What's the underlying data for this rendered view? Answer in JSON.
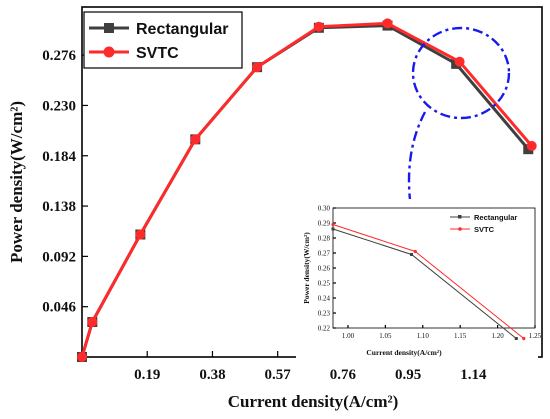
{
  "chart_data": [
    {
      "type": "line",
      "xlabel": "Current density(A/cm²)",
      "ylabel": "Power density(W/cm²)",
      "xlim": [
        0.0,
        1.34
      ],
      "ylim": [
        0.0,
        0.32
      ],
      "x_ticks": [
        "0.19",
        "0.38",
        "0.57",
        "0.76",
        "0.95",
        "1.14"
      ],
      "y_ticks": [
        "0.046",
        "0.092",
        "0.138",
        "0.184",
        "0.230",
        "0.276"
      ],
      "legend_placement": "top-left",
      "series": [
        {
          "name": "Rectangular",
          "color": "#3f3f3f",
          "marker": "square",
          "x": [
            0.0,
            0.03,
            0.17,
            0.33,
            0.51,
            0.69,
            0.89,
            1.09,
            1.3
          ],
          "y": [
            0.0,
            0.032,
            0.112,
            0.199,
            0.265,
            0.301,
            0.303,
            0.268,
            0.19
          ]
        },
        {
          "name": "SVTC",
          "color": "#ff2a2a",
          "marker": "circle",
          "x": [
            0.0,
            0.03,
            0.17,
            0.33,
            0.51,
            0.69,
            0.89,
            1.1,
            1.31
          ],
          "y": [
            0.0,
            0.032,
            0.112,
            0.199,
            0.265,
            0.302,
            0.305,
            0.27,
            0.193
          ]
        }
      ]
    },
    {
      "type": "line",
      "xlabel": "Current density(A/cm²)",
      "ylabel": "Power density(W/cm²)",
      "xlim": [
        0.98,
        1.25
      ],
      "ylim": [
        0.22,
        0.3
      ],
      "x_ticks": [
        "1.00",
        "1.05",
        "1.10",
        "1.15",
        "1.20",
        "1.25"
      ],
      "y_ticks": [
        "0.22",
        "0.23",
        "0.24",
        "0.25",
        "0.26",
        "0.27",
        "0.28",
        "0.29",
        "0.30"
      ],
      "legend_placement": "top-right",
      "series": [
        {
          "name": "Rectangular",
          "color": "#3f3f3f",
          "x": [
            0.98,
            1.085,
            1.225
          ],
          "y": [
            0.286,
            0.269,
            0.213
          ]
        },
        {
          "name": "SVTC",
          "color": "#ff2a2a",
          "x": [
            0.98,
            1.09,
            1.235
          ],
          "y": [
            0.289,
            0.271,
            0.213
          ]
        }
      ]
    }
  ]
}
